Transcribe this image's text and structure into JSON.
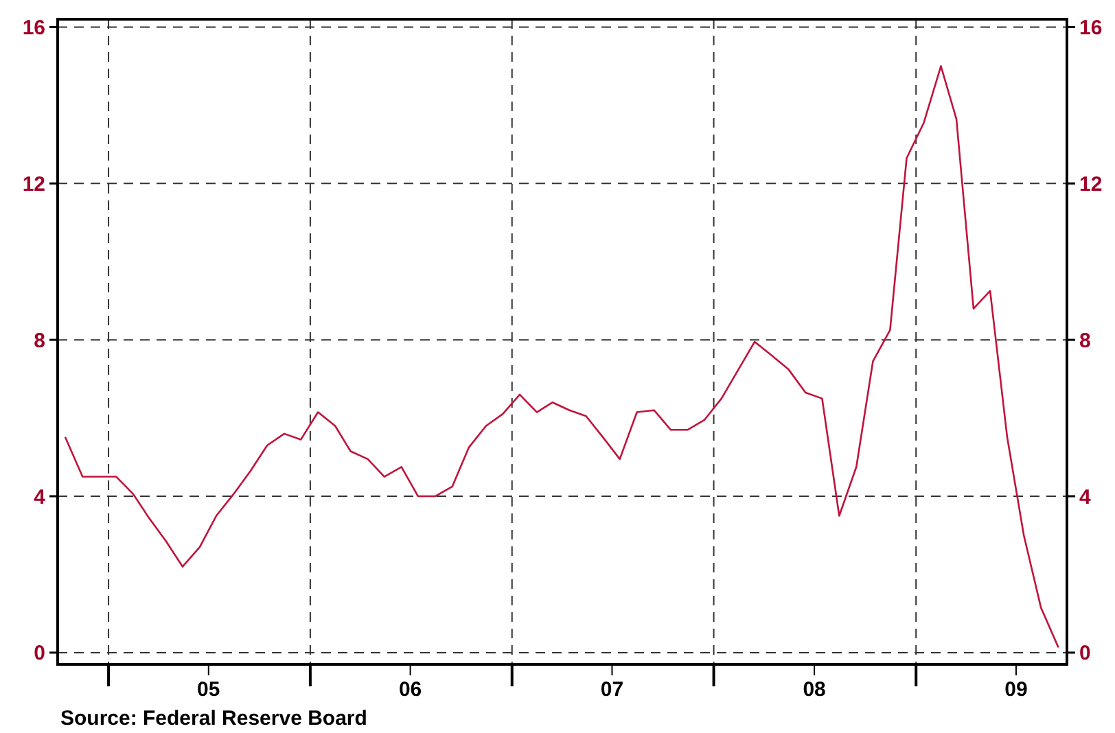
{
  "chart_data": {
    "type": "line",
    "x": [
      "2004-10-15",
      "2004-11-15",
      "2004-12-15",
      "2005-01-15",
      "2005-02-15",
      "2005-03-15",
      "2005-04-15",
      "2005-05-15",
      "2005-06-15",
      "2005-07-15",
      "2005-08-15",
      "2005-09-15",
      "2005-10-15",
      "2005-11-15",
      "2005-12-15",
      "2006-01-15",
      "2006-02-15",
      "2006-03-15",
      "2006-04-15",
      "2006-05-15",
      "2006-06-15",
      "2006-07-15",
      "2006-08-15",
      "2006-09-15",
      "2006-10-15",
      "2006-11-15",
      "2006-12-15",
      "2007-01-15",
      "2007-02-15",
      "2007-03-15",
      "2007-04-15",
      "2007-05-15",
      "2007-06-15",
      "2007-07-15",
      "2007-08-15",
      "2007-09-15",
      "2007-10-15",
      "2007-11-15",
      "2007-12-15",
      "2008-01-15",
      "2008-02-15",
      "2008-03-15",
      "2008-04-15",
      "2008-05-15",
      "2008-06-15",
      "2008-07-15",
      "2008-08-15",
      "2008-09-15",
      "2008-10-15",
      "2008-11-15",
      "2008-12-15",
      "2009-01-15",
      "2009-02-15",
      "2009-03-15",
      "2009-04-15",
      "2009-05-15",
      "2009-06-15",
      "2009-07-15",
      "2009-08-15",
      "2009-09-15"
    ],
    "series": [
      {
        "color": "#c0143c",
        "values": [
          5.5,
          4.5,
          4.5,
          4.5,
          4.05,
          3.45,
          2.85,
          2.2,
          2.7,
          3.5,
          4.05,
          4.65,
          5.3,
          5.6,
          5.45,
          6.15,
          5.8,
          5.15,
          4.95,
          4.5,
          4.75,
          4.0,
          4.0,
          4.25,
          5.25,
          5.8,
          6.1,
          6.6,
          6.15,
          6.4,
          6.2,
          6.05,
          5.5,
          4.95,
          6.15,
          6.2,
          5.7,
          5.7,
          5.95,
          6.5,
          7.25,
          7.95,
          7.6,
          7.25,
          6.65,
          6.5,
          3.5,
          4.75,
          7.45,
          8.25,
          12.65,
          13.55,
          15.0,
          13.65,
          8.8,
          9.25,
          5.5,
          3.0,
          1.15,
          0.15
        ]
      }
    ],
    "xlim": [
      "2004-10-01",
      "2009-10-01"
    ],
    "xticks": [
      {
        "value": "2005-01-01",
        "label": null
      },
      {
        "value": "2005-07-01",
        "label": "05"
      },
      {
        "value": "2006-01-01",
        "label": null
      },
      {
        "value": "2006-07-01",
        "label": "06"
      },
      {
        "value": "2007-01-01",
        "label": null
      },
      {
        "value": "2007-07-01",
        "label": "07"
      },
      {
        "value": "2008-01-01",
        "label": null
      },
      {
        "value": "2008-07-01",
        "label": "08"
      },
      {
        "value": "2009-01-01",
        "label": null
      },
      {
        "value": "2009-07-01",
        "label": "09"
      }
    ],
    "ylim": [
      -0.3,
      16.2
    ],
    "yticks": [
      0,
      4,
      8,
      12,
      16
    ],
    "y2lim": [
      -0.3,
      16.2
    ],
    "y2ticks": [
      0,
      4,
      8,
      12,
      16
    ],
    "grid": true,
    "line_style": "solid",
    "marker": "none",
    "annotations": [
      "Source:  Federal Reserve Board"
    ]
  }
}
